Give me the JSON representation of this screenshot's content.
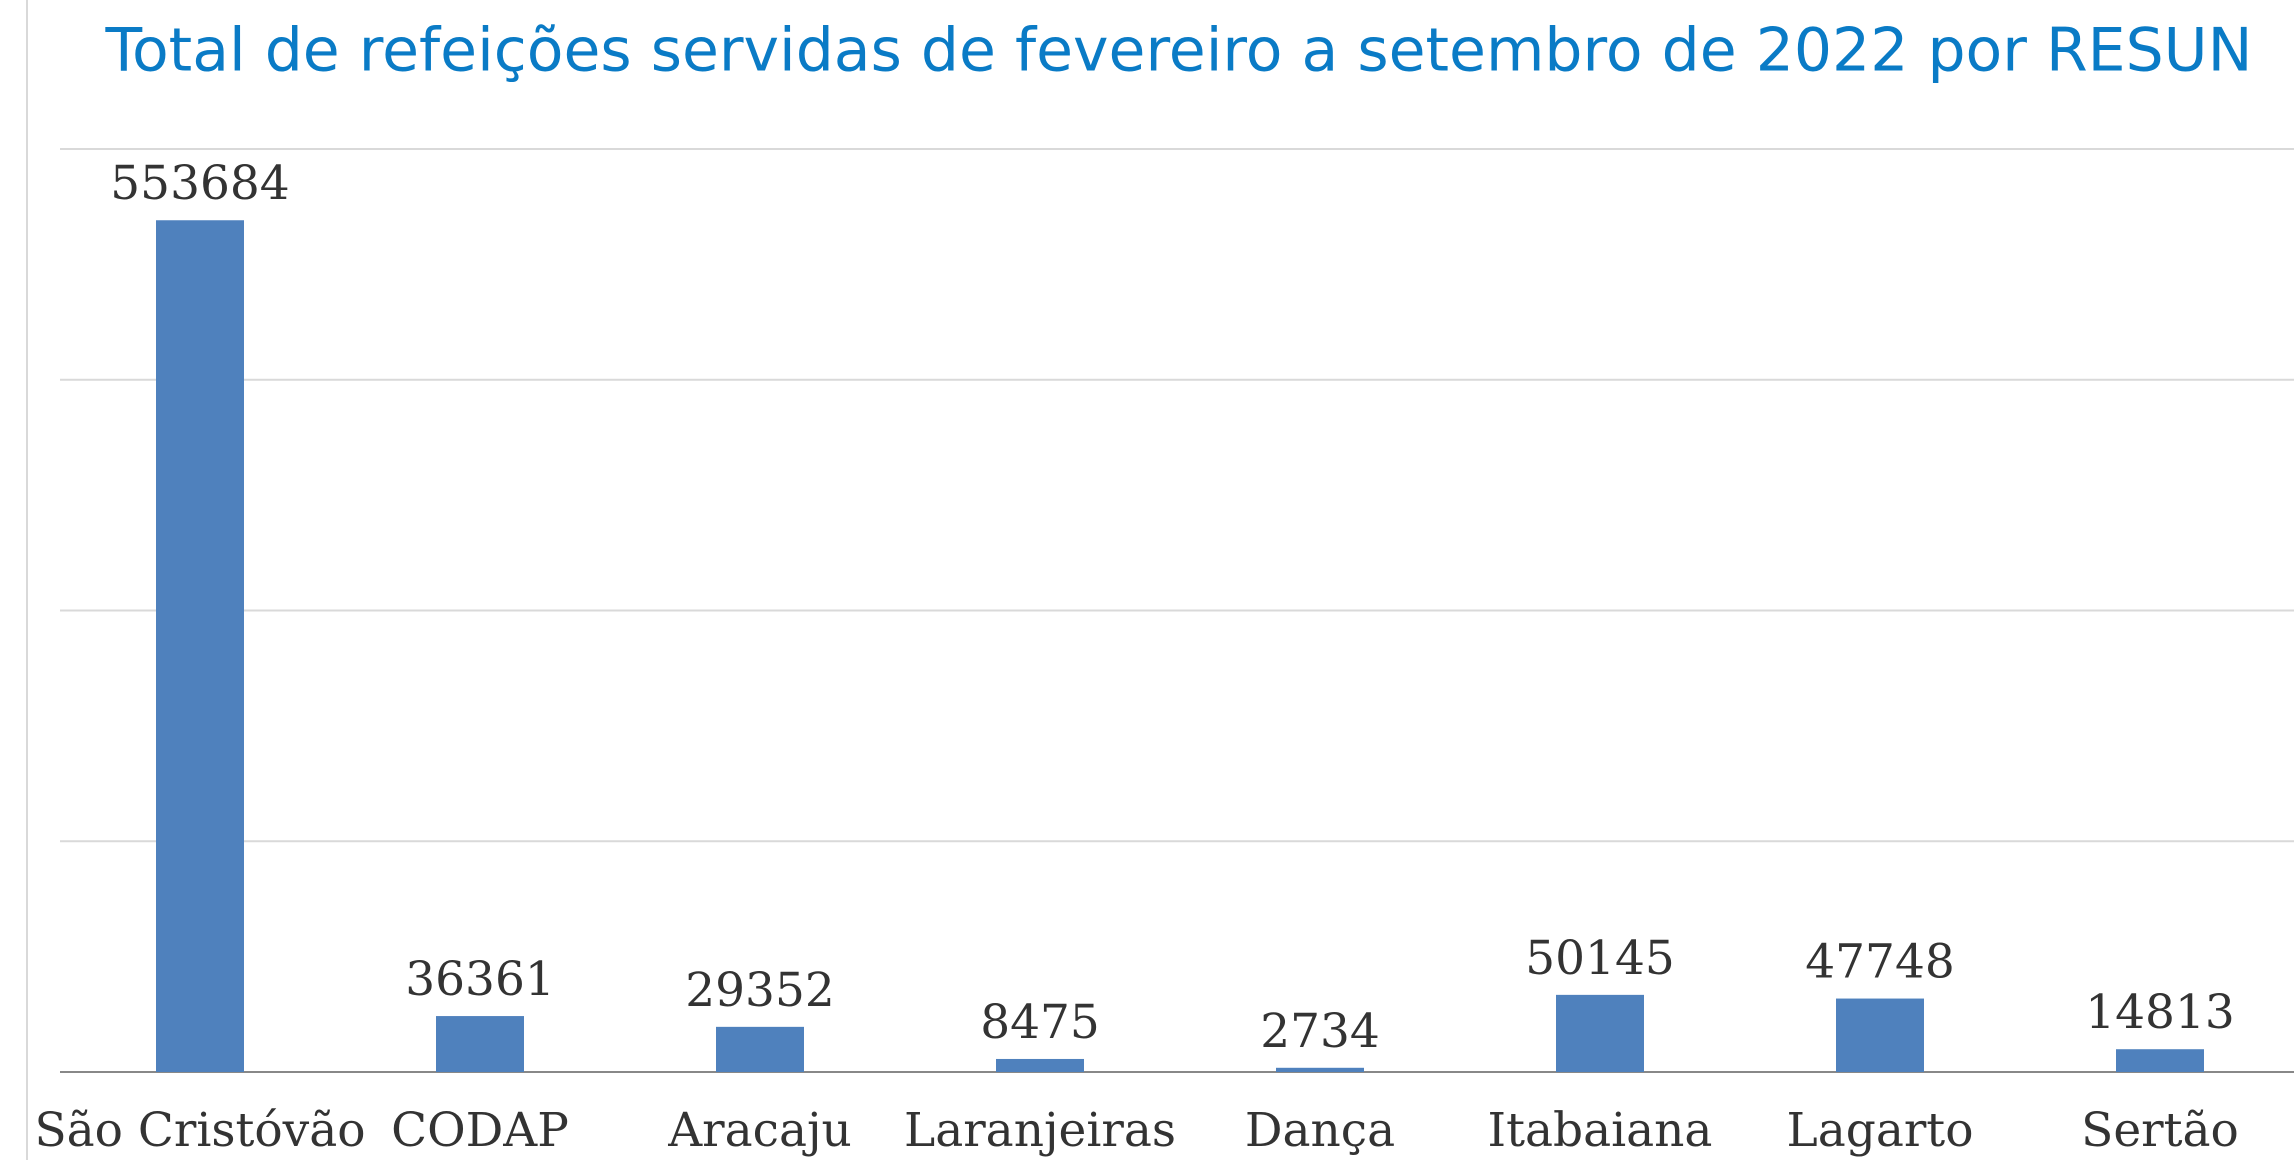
{
  "chart_data": {
    "type": "bar",
    "title": "Total de refeições servidas de fevereiro a setembro de 2022 por RESUN",
    "categories": [
      "São Cristóvão",
      "CODAP",
      "Aracaju",
      "Laranjeiras",
      "Dança",
      "Itabaiana",
      "Lagarto",
      "Sertão"
    ],
    "values": [
      553684,
      36361,
      29352,
      8475,
      2734,
      50145,
      47748,
      14813
    ],
    "color": "#4f81bd",
    "ylim": [
      0,
      600000
    ],
    "yticks": [
      0,
      150000,
      300000,
      450000,
      600000
    ],
    "grid": true
  }
}
